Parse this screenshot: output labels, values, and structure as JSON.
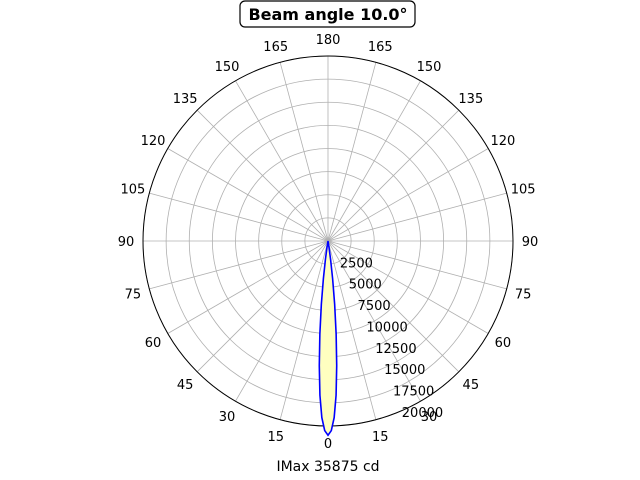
{
  "chart_data": {
    "type": "polar",
    "title": "Beam angle 10.0°",
    "xlabel": "IMax 35875 cd",
    "angle_tick_labels": [
      "0",
      "15",
      "30",
      "45",
      "60",
      "75",
      "90",
      "105",
      "120",
      "135",
      "150",
      "165",
      "180",
      "165",
      "150",
      "135",
      "120",
      "105",
      "90",
      "75",
      "60",
      "45",
      "30",
      "15"
    ],
    "radial_ticks": [
      2500,
      5000,
      7500,
      10000,
      12500,
      15000,
      17500,
      20000
    ],
    "rlim": [
      0,
      20000
    ],
    "grid": true,
    "series": [
      {
        "color": "#0000ff",
        "fill": "#ffffc0",
        "points": [
          [
            0,
            21000
          ],
          [
            1,
            20500
          ],
          [
            2,
            19100
          ],
          [
            3,
            16700
          ],
          [
            4,
            13500
          ],
          [
            5,
            10100
          ],
          [
            6,
            6900
          ],
          [
            7,
            4100
          ],
          [
            8,
            2000
          ],
          [
            9,
            700
          ],
          [
            10,
            0
          ]
        ]
      }
    ]
  }
}
